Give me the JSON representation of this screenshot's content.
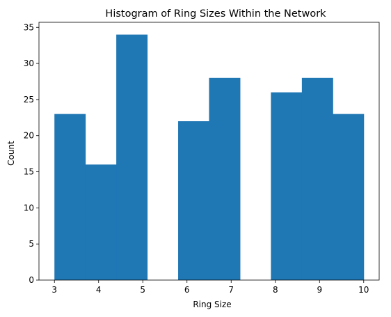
{
  "chart_data": {
    "type": "bar",
    "title": "Histogram of Ring Sizes Within the Network",
    "xlabel": "Ring Size",
    "ylabel": "Count",
    "xlim": [
      2.65,
      10.35
    ],
    "ylim": [
      0,
      35.7
    ],
    "xticks": [
      3,
      4,
      5,
      6,
      7,
      8,
      9,
      10
    ],
    "yticks": [
      0,
      5,
      10,
      15,
      20,
      25,
      30,
      35
    ],
    "bin_edges": [
      3.0,
      3.7,
      4.4,
      5.1,
      5.8,
      6.5,
      7.2,
      7.9,
      8.6,
      9.3,
      10.0
    ],
    "values": [
      23,
      16,
      34,
      0,
      22,
      28,
      0,
      26,
      28,
      23
    ],
    "bar_color": "#1f77b4",
    "grid": false,
    "legend": "none"
  }
}
